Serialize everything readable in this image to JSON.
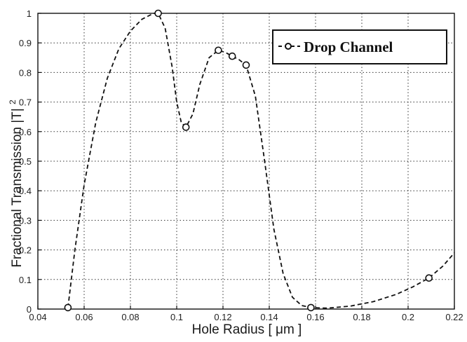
{
  "chart_data": {
    "type": "line",
    "xlabel": "Hole Radius",
    "xunit": "[ μm ]",
    "ylabel": "Fractional Transmission |T|",
    "ylabel_sup": "2",
    "xlim": [
      0.04,
      0.22
    ],
    "ylim": [
      0,
      1
    ],
    "grid": true,
    "legend_position": "top-right",
    "xticks": [
      0.04,
      0.06,
      0.08,
      0.1,
      0.12,
      0.14,
      0.16,
      0.18,
      0.2,
      0.22
    ],
    "xtick_labels": [
      "0.04",
      "0.06",
      "0.08",
      "0.1",
      "0.12",
      "0.14",
      "0.16",
      "0.18",
      "0.2",
      "0.22"
    ],
    "yticks": [
      0,
      0.1,
      0.2,
      0.3,
      0.4,
      0.5,
      0.6,
      0.7,
      0.8,
      0.9,
      1
    ],
    "ytick_labels": [
      "0",
      "0.1",
      "0.2",
      "0.3",
      "0.4",
      "0.5",
      "0.6",
      "0.7",
      "0.8",
      "0.9",
      "1"
    ],
    "series": [
      {
        "name": "Drop Channel",
        "color": "#111111",
        "markers": {
          "x": [
            0.053,
            0.092,
            0.104,
            0.118,
            0.124,
            0.13,
            0.158,
            0.209
          ],
          "y": [
            0.005,
            1.0,
            0.615,
            0.875,
            0.855,
            0.825,
            0.005,
            0.105
          ]
        },
        "curve": {
          "x": [
            0.053,
            0.056,
            0.06,
            0.065,
            0.07,
            0.075,
            0.08,
            0.085,
            0.09,
            0.092,
            0.095,
            0.098,
            0.1,
            0.102,
            0.104,
            0.107,
            0.11,
            0.114,
            0.118,
            0.121,
            0.124,
            0.127,
            0.13,
            0.134,
            0.138,
            0.142,
            0.146,
            0.15,
            0.154,
            0.158,
            0.165,
            0.175,
            0.185,
            0.195,
            0.202,
            0.209,
            0.215,
            0.22
          ],
          "y": [
            0.005,
            0.2,
            0.42,
            0.63,
            0.78,
            0.88,
            0.94,
            0.98,
            1.0,
            1.0,
            0.95,
            0.82,
            0.7,
            0.63,
            0.615,
            0.66,
            0.76,
            0.85,
            0.875,
            0.868,
            0.855,
            0.843,
            0.825,
            0.72,
            0.5,
            0.27,
            0.12,
            0.04,
            0.012,
            0.005,
            0.003,
            0.01,
            0.025,
            0.05,
            0.075,
            0.105,
            0.145,
            0.19
          ]
        }
      }
    ]
  }
}
